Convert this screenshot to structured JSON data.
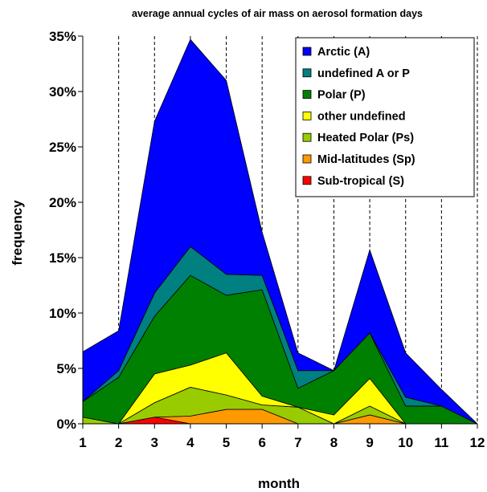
{
  "chart_data": {
    "type": "area",
    "stacked": true,
    "title": "average annual cycles of air mass on aerosol formation days",
    "xlabel": "month",
    "ylabel": "frequency",
    "x": [
      1,
      2,
      3,
      4,
      5,
      6,
      7,
      8,
      9,
      10,
      11,
      12
    ],
    "ylim": [
      0,
      35
    ],
    "yticks": [
      "0%",
      "5%",
      "10%",
      "15%",
      "20%",
      "25%",
      "30%",
      "35%"
    ],
    "vertical_grid": "dashed",
    "legend_position": "top-right",
    "series": [
      {
        "name": "Sub-tropical (S)",
        "color": "#ff0000",
        "values": [
          0,
          0,
          0.6,
          0,
          0,
          0,
          0,
          0,
          0,
          0,
          0,
          0
        ]
      },
      {
        "name": "Mid-latitudes (Sp)",
        "color": "#ff9900",
        "values": [
          0,
          0,
          0,
          0.7,
          1.3,
          1.3,
          0,
          0,
          0.8,
          0,
          0,
          0
        ]
      },
      {
        "name": "Heated Polar (Ps)",
        "color": "#99cc00",
        "values": [
          0.6,
          0,
          1.3,
          2.6,
          1.3,
          0.4,
          1.5,
          0,
          0.8,
          0,
          0,
          0
        ]
      },
      {
        "name": "other undefined",
        "color": "#ffff00",
        "values": [
          0,
          0,
          2.6,
          2.0,
          3.8,
          0.8,
          0,
          0.8,
          2.5,
          0,
          0,
          0
        ]
      },
      {
        "name": "Polar (P)",
        "color": "#008000",
        "values": [
          1.4,
          4.2,
          5.2,
          8.1,
          5.2,
          9.6,
          1.7,
          4.0,
          4.1,
          1.6,
          1.6,
          0
        ]
      },
      {
        "name": "undefined A or P",
        "color": "#008080",
        "values": [
          0,
          0.6,
          2.1,
          2.6,
          1.9,
          1.3,
          1.6,
          0,
          0,
          0.8,
          0,
          0
        ]
      },
      {
        "name": "Arctic (A)",
        "color": "#0000ff",
        "values": [
          4.5,
          3.6,
          15.5,
          18.7,
          17.5,
          3.9,
          1.6,
          0,
          7.5,
          4.0,
          1.5,
          0
        ]
      }
    ],
    "legend_order": [
      "Arctic (A)",
      "undefined A or P",
      "Polar (P)",
      "other undefined",
      "Heated Polar (Ps)",
      "Mid-latitudes (Sp)",
      "Sub-tropical (S)"
    ]
  }
}
